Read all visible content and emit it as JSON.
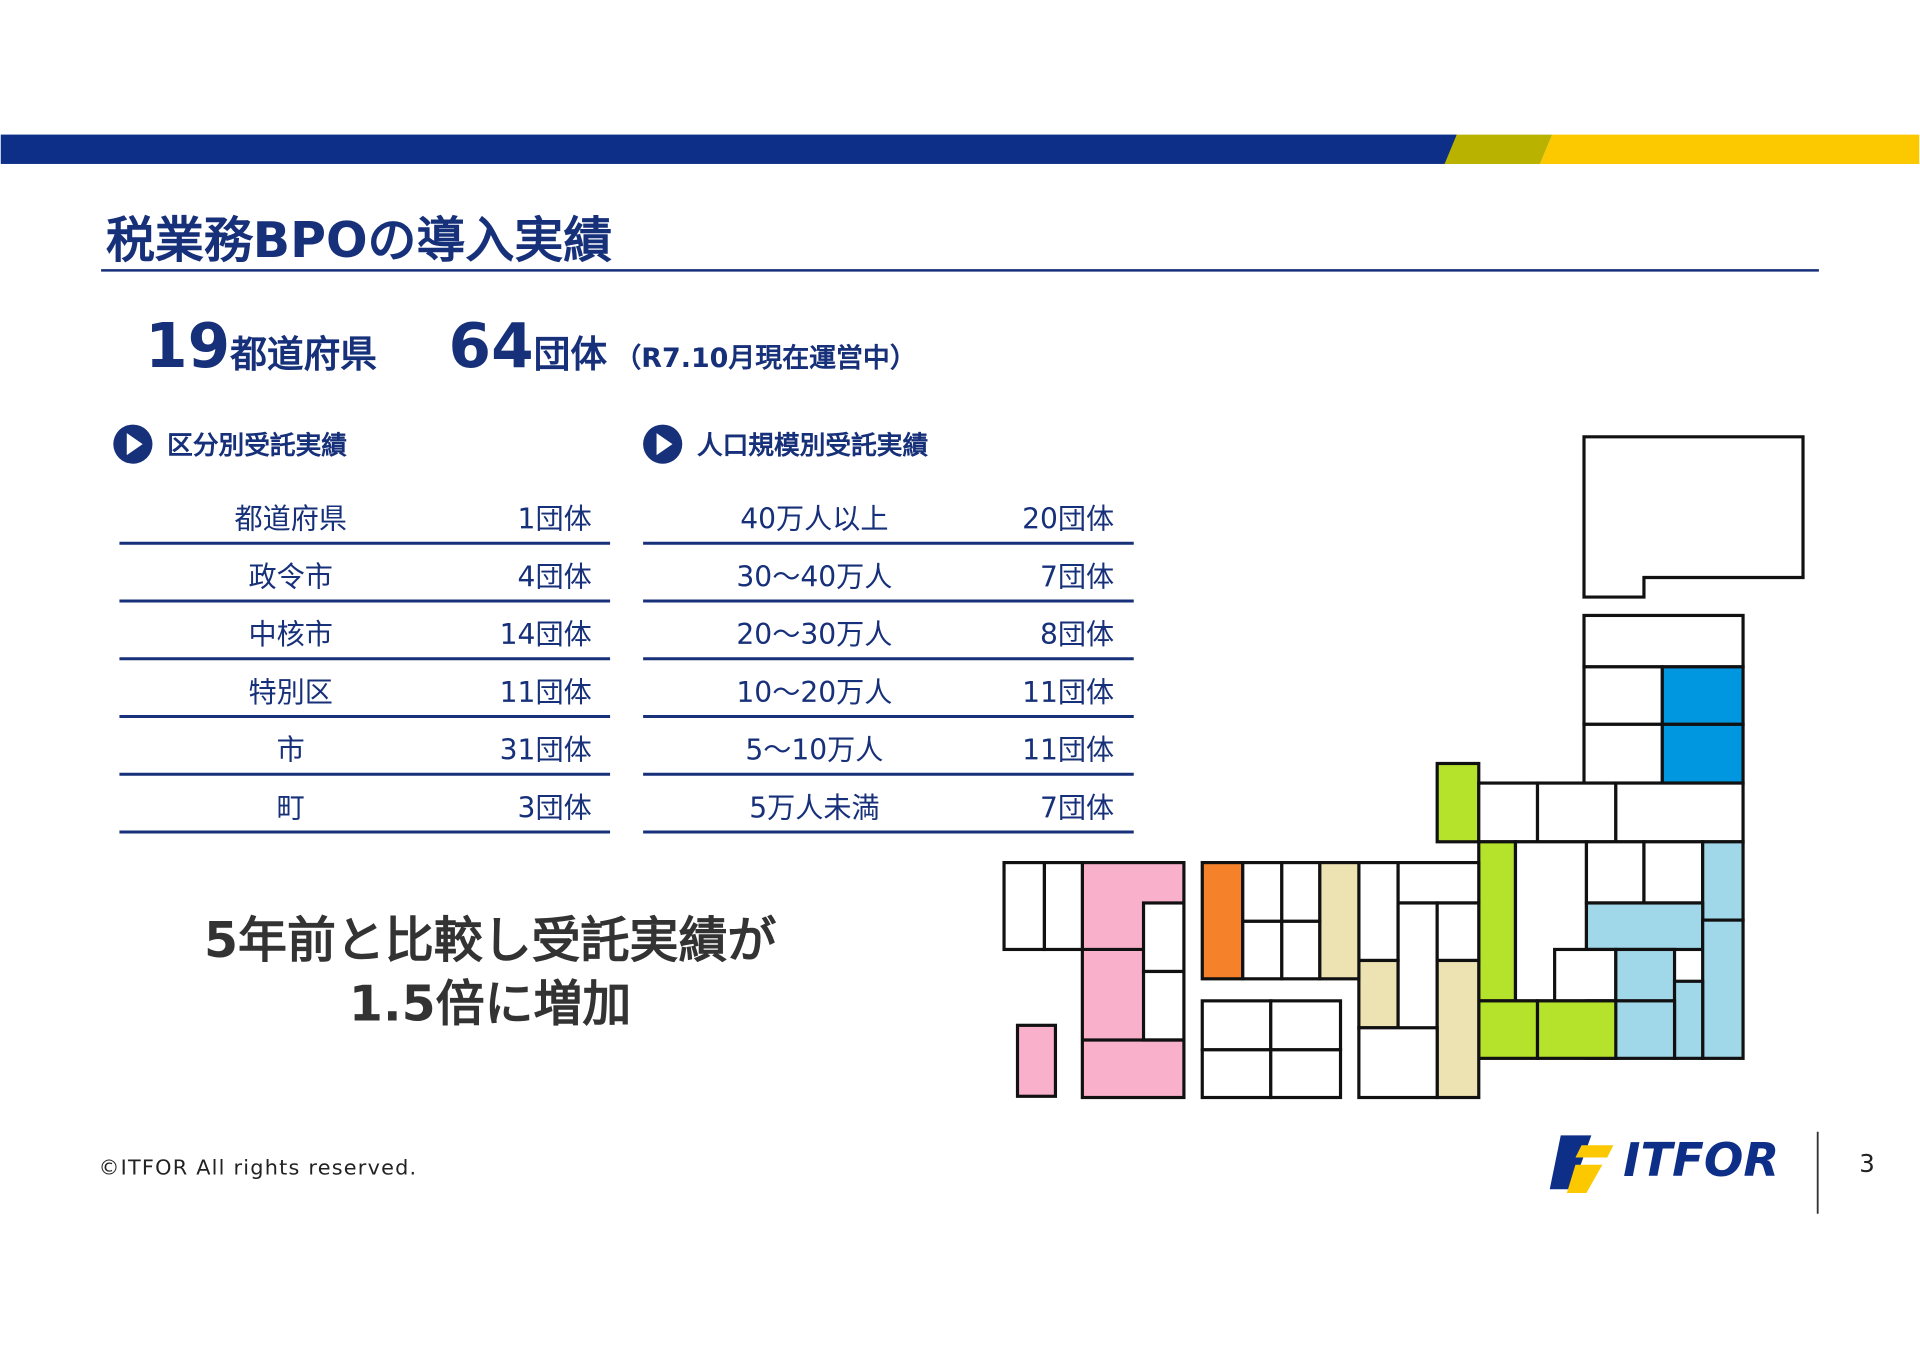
{
  "header": {
    "title": "税業務BPOの導入実績"
  },
  "summary": {
    "prefectures_count": "19",
    "prefectures_unit": "都道府県",
    "groups_count": "64",
    "groups_unit": "団体",
    "note": "（R7.10月現在運営中）"
  },
  "table_by_type": {
    "title": "区分別受託実績",
    "rows": [
      [
        "都道府県",
        "1団体"
      ],
      [
        "政令市",
        "4団体"
      ],
      [
        "中核市",
        "14団体"
      ],
      [
        "特別区",
        "11団体"
      ],
      [
        "市",
        "31団体"
      ],
      [
        "町",
        "3団体"
      ]
    ]
  },
  "table_by_population": {
    "title": "人口規模別受託実績",
    "rows": [
      [
        "40万人以上",
        "20団体"
      ],
      [
        "30～40万人",
        "7団体"
      ],
      [
        "20～30万人",
        "8団体"
      ],
      [
        "10～20万人",
        "11団体"
      ],
      [
        "5～10万人",
        "11団体"
      ],
      [
        "5万人未満",
        "7団体"
      ]
    ]
  },
  "highlight": {
    "lines": [
      "5年前と比較し受託実績が",
      "1.5倍に増加"
    ]
  },
  "footer": {
    "copyright": "©ITFOR All rights reserved.",
    "logo": "ITFOR",
    "page_number": "3"
  }
}
